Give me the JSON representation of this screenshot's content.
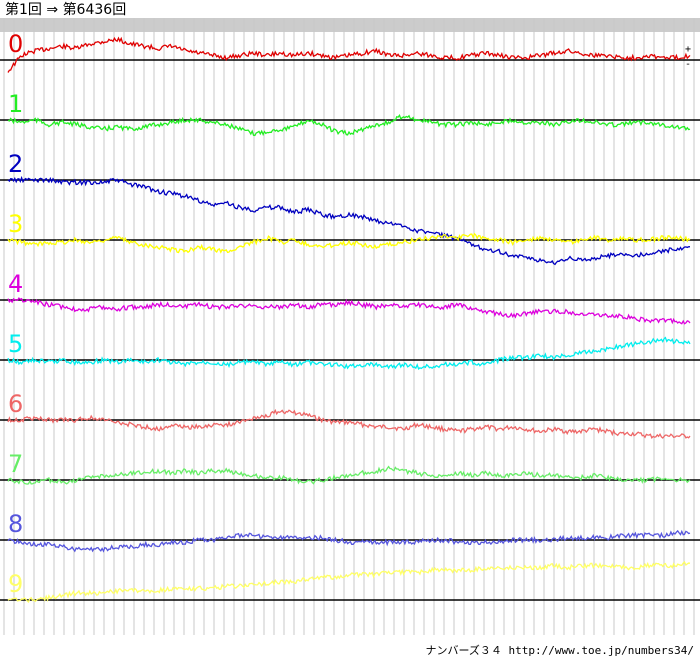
{
  "title": {
    "from": "第1回",
    "arrow": "⇒",
    "to": "第6436回"
  },
  "footer": "ナンバーズ３４ http://www.toe.jp/numbers34/",
  "zoom": {
    "plus": "+",
    "minus": "-"
  },
  "chart_data": {
    "type": "line",
    "title": "第1回 ⇒ 第6436回",
    "x_range": [
      1,
      6436
    ],
    "grid": true,
    "series": [
      {
        "name": "0",
        "color": "#e00000",
        "baseline": 0,
        "values": [
          -5,
          2,
          4,
          5,
          6,
          5,
          7,
          8,
          9,
          7,
          6,
          5,
          6,
          4,
          3,
          2,
          1,
          2,
          3,
          2,
          3,
          2,
          3,
          2,
          1,
          2,
          3,
          4,
          2,
          2,
          3,
          2,
          1,
          1,
          2,
          3,
          2,
          1,
          1,
          2,
          3,
          4,
          3,
          2,
          2,
          1,
          1,
          2,
          1,
          1,
          2
        ]
      },
      {
        "name": "1",
        "color": "#22ee22",
        "baseline": 0,
        "values": [
          0,
          -1,
          0,
          -2,
          -1,
          -2,
          -3,
          -4,
          -3,
          -4,
          -3,
          -2,
          -1,
          0,
          0,
          -1,
          -2,
          -4,
          -6,
          -5,
          -4,
          -3,
          0,
          -2,
          -5,
          -6,
          -4,
          -2,
          -1,
          2,
          0,
          -1,
          -2,
          -2,
          -1,
          -2,
          -1,
          0,
          -1,
          -1,
          -2,
          -1,
          0,
          -1,
          -2,
          -2,
          -1,
          -1,
          -2,
          -3,
          -4
        ]
      },
      {
        "name": "2",
        "color": "#0000c0",
        "baseline": 0,
        "values": [
          0,
          0,
          0,
          0,
          -1,
          -1,
          -1,
          -1,
          0,
          -2,
          -3,
          -5,
          -6,
          -7,
          -9,
          -11,
          -10,
          -12,
          -13,
          -12,
          -12,
          -14,
          -13,
          -15,
          -16,
          -15,
          -16,
          -18,
          -19,
          -20,
          -22,
          -23,
          -24,
          -26,
          -28,
          -30,
          -31,
          -33,
          -34,
          -35,
          -36,
          -34,
          -35,
          -34,
          -33,
          -32,
          -33,
          -32,
          -31,
          -30,
          -29
        ]
      },
      {
        "name": "3",
        "color": "#ffff00",
        "baseline": 0,
        "values": [
          0,
          -1,
          -2,
          -1,
          -1,
          0,
          -1,
          0,
          1,
          -1,
          -2,
          -3,
          -4,
          -5,
          -3,
          -4,
          -5,
          -3,
          -1,
          1,
          -1,
          0,
          -2,
          -3,
          -2,
          -1,
          -2,
          -3,
          -2,
          -1,
          0,
          1,
          2,
          1,
          2,
          1,
          0,
          -1,
          0,
          1,
          0,
          -1,
          0,
          1,
          0,
          1,
          0,
          0,
          1,
          1,
          0
        ]
      },
      {
        "name": "4",
        "color": "#dd00dd",
        "baseline": 0,
        "values": [
          0,
          0,
          -1,
          -2,
          -3,
          -4,
          -4,
          -3,
          -4,
          -3,
          -3,
          -2,
          -2,
          -3,
          -2,
          -3,
          -3,
          -2,
          -3,
          -3,
          -3,
          -2,
          -3,
          -2,
          -2,
          -1,
          -2,
          -3,
          -2,
          -3,
          -2,
          -3,
          -3,
          -2,
          -4,
          -5,
          -6,
          -7,
          -6,
          -5,
          -5,
          -5,
          -6,
          -6,
          -7,
          -7,
          -8,
          -9,
          -9,
          -9,
          -10
        ]
      },
      {
        "name": "5",
        "color": "#00eeee",
        "baseline": 0,
        "values": [
          0,
          -1,
          0,
          -1,
          0,
          -1,
          -1,
          0,
          -1,
          0,
          -1,
          0,
          -1,
          -2,
          -1,
          -1,
          -2,
          -1,
          -1,
          -2,
          -1,
          -2,
          -1,
          -2,
          -2,
          -3,
          -2,
          -2,
          -3,
          -2,
          -3,
          -3,
          -2,
          -2,
          -1,
          -2,
          0,
          1,
          1,
          2,
          1,
          2,
          3,
          4,
          5,
          6,
          7,
          8,
          9,
          8,
          7
        ]
      },
      {
        "name": "6",
        "color": "#ee6666",
        "baseline": 0,
        "values": [
          0,
          0,
          1,
          0,
          0,
          0,
          1,
          0,
          -1,
          -2,
          -3,
          -4,
          -2,
          -3,
          -3,
          -2,
          -2,
          -1,
          1,
          2,
          4,
          3,
          2,
          0,
          -1,
          -1,
          -2,
          -3,
          -3,
          -4,
          -2,
          -3,
          -4,
          -5,
          -4,
          -3,
          -4,
          -3,
          -4,
          -5,
          -4,
          -5,
          -5,
          -4,
          -5,
          -6,
          -6,
          -7,
          -7,
          -7,
          -7
        ]
      },
      {
        "name": "7",
        "color": "#66ee66",
        "baseline": 0,
        "values": [
          0,
          -1,
          -1,
          0,
          -1,
          0,
          1,
          2,
          2,
          3,
          3,
          4,
          3,
          4,
          3,
          4,
          4,
          3,
          2,
          1,
          1,
          0,
          -1,
          0,
          1,
          2,
          3,
          4,
          5,
          4,
          3,
          2,
          2,
          3,
          2,
          3,
          2,
          2,
          3,
          2,
          2,
          1,
          1,
          2,
          1,
          0,
          0,
          0,
          1,
          0,
          0
        ]
      },
      {
        "name": "8",
        "color": "#5555dd",
        "baseline": 0,
        "values": [
          0,
          -1,
          -2,
          -2,
          -3,
          -4,
          -4,
          -4,
          -3,
          -3,
          -2,
          -2,
          -1,
          -1,
          0,
          0,
          1,
          2,
          2,
          1,
          1,
          1,
          1,
          1,
          0,
          -1,
          -1,
          -1,
          -1,
          -1,
          -1,
          0,
          0,
          -1,
          -1,
          -1,
          -1,
          0,
          0,
          0,
          0,
          1,
          1,
          1,
          1,
          2,
          2,
          2,
          2,
          3,
          3
        ]
      },
      {
        "name": "9",
        "color": "#ffff66",
        "baseline": 0,
        "values": [
          0,
          0,
          0,
          1,
          2,
          3,
          3,
          3,
          4,
          4,
          4,
          4,
          5,
          5,
          5,
          5,
          6,
          6,
          7,
          7,
          8,
          8,
          9,
          10,
          10,
          11,
          11,
          11,
          12,
          12,
          12,
          13,
          13,
          13,
          13,
          14,
          14,
          14,
          14,
          14,
          15,
          14,
          15,
          15,
          15,
          14,
          14,
          15,
          15,
          15,
          16
        ]
      }
    ]
  }
}
